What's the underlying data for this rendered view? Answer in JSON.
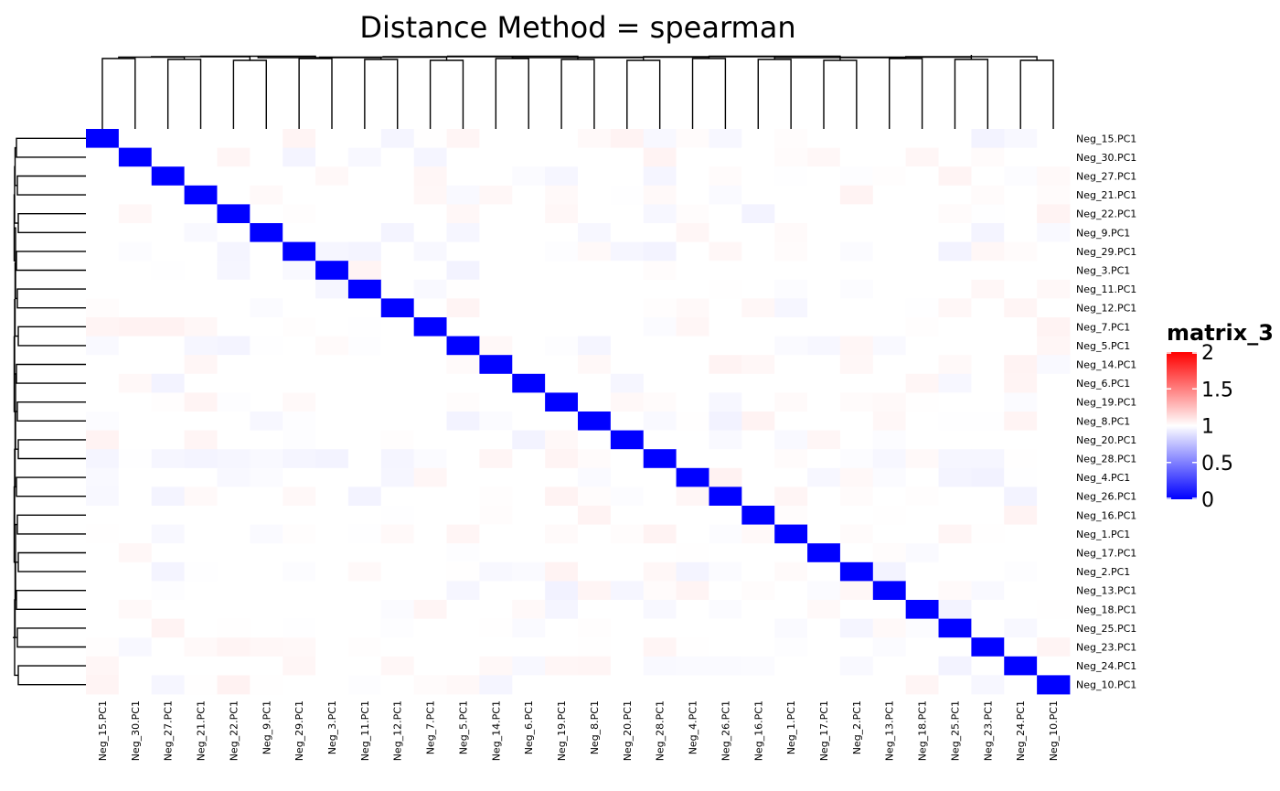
{
  "chart_data": {
    "type": "heatmap",
    "title": "Distance Method = spearman",
    "row_labels": [
      "Neg_15.PC1",
      "Neg_30.PC1",
      "Neg_27.PC1",
      "Neg_21.PC1",
      "Neg_22.PC1",
      "Neg_9.PC1",
      "Neg_29.PC1",
      "Neg_3.PC1",
      "Neg_11.PC1",
      "Neg_12.PC1",
      "Neg_7.PC1",
      "Neg_5.PC1",
      "Neg_14.PC1",
      "Neg_6.PC1",
      "Neg_19.PC1",
      "Neg_8.PC1",
      "Neg_20.PC1",
      "Neg_28.PC1",
      "Neg_4.PC1",
      "Neg_26.PC1",
      "Neg_16.PC1",
      "Neg_1.PC1",
      "Neg_17.PC1",
      "Neg_2.PC1",
      "Neg_13.PC1",
      "Neg_18.PC1",
      "Neg_25.PC1",
      "Neg_23.PC1",
      "Neg_24.PC1",
      "Neg_10.PC1"
    ],
    "col_labels": [
      "Neg_15.PC1",
      "Neg_30.PC1",
      "Neg_27.PC1",
      "Neg_21.PC1",
      "Neg_22.PC1",
      "Neg_9.PC1",
      "Neg_29.PC1",
      "Neg_3.PC1",
      "Neg_11.PC1",
      "Neg_12.PC1",
      "Neg_7.PC1",
      "Neg_5.PC1",
      "Neg_14.PC1",
      "Neg_6.PC1",
      "Neg_19.PC1",
      "Neg_8.PC1",
      "Neg_20.PC1",
      "Neg_28.PC1",
      "Neg_4.PC1",
      "Neg_26.PC1",
      "Neg_16.PC1",
      "Neg_1.PC1",
      "Neg_17.PC1",
      "Neg_2.PC1",
      "Neg_13.PC1",
      "Neg_18.PC1",
      "Neg_25.PC1",
      "Neg_23.PC1",
      "Neg_24.PC1",
      "Neg_10.PC1"
    ],
    "diagonal_value": 0,
    "off_diagonal_value": 1,
    "off_diagonal_variation": [
      0.95,
      1.05
    ],
    "color_scale": {
      "stops": [
        {
          "value": 0,
          "color": "#0000FF"
        },
        {
          "value": 1,
          "color": "#FFFFFF"
        },
        {
          "value": 2,
          "color": "#FF0000"
        }
      ]
    },
    "legend": {
      "title": "matrix_3",
      "ticks": [
        "2",
        "1.5",
        "1",
        "0.5",
        "0"
      ],
      "tick_values": [
        2,
        1.5,
        1,
        0.5,
        0
      ],
      "placement": "right"
    },
    "row_dendrogram": true,
    "col_dendrogram": true
  }
}
